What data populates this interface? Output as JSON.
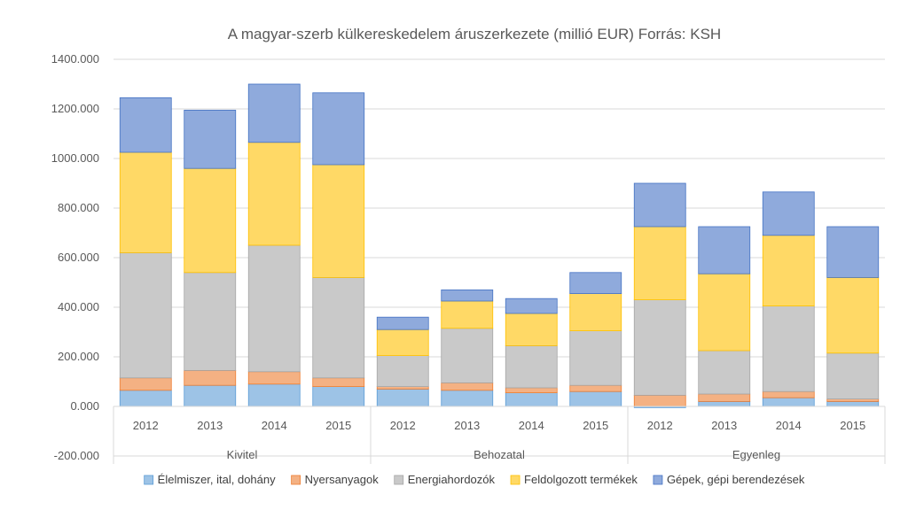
{
  "chart_data": {
    "type": "bar",
    "stacked": true,
    "title": "A magyar-szerb külkereskedelem áruszerkezete (millió EUR)  Forrás: KSH",
    "groups": [
      {
        "label": "Kivitel",
        "categories": [
          "2012",
          "2013",
          "2014",
          "2015"
        ]
      },
      {
        "label": "Behozatal",
        "categories": [
          "2012",
          "2013",
          "2014",
          "2015"
        ]
      },
      {
        "label": "Egyenleg",
        "categories": [
          "2012",
          "2013",
          "2014",
          "2015"
        ]
      }
    ],
    "series": [
      {
        "name": "Élelmiszer, ital, dohány",
        "color": "#9DC3E6",
        "border": "#5B9BD5",
        "values": [
          65,
          85,
          90,
          80,
          70,
          65,
          55,
          60,
          -5,
          20,
          35,
          20
        ]
      },
      {
        "name": "Nyersanyagok",
        "color": "#F4B183",
        "border": "#ED7D31",
        "values": [
          50,
          60,
          50,
          35,
          10,
          30,
          20,
          25,
          45,
          30,
          25,
          10
        ]
      },
      {
        "name": "Energiahordozók",
        "color": "#C9C9C9",
        "border": "#A5A5A5",
        "values": [
          505,
          395,
          510,
          405,
          125,
          220,
          170,
          220,
          385,
          175,
          345,
          185
        ]
      },
      {
        "name": "Feldolgozott termékek",
        "color": "#FFD966",
        "border": "#FFC000",
        "values": [
          405,
          420,
          415,
          455,
          105,
          110,
          130,
          150,
          295,
          310,
          285,
          305
        ]
      },
      {
        "name": "Gépek, gépi berendezések",
        "color": "#8FAADC",
        "border": "#4472C4",
        "values": [
          220,
          235,
          235,
          290,
          50,
          45,
          60,
          85,
          175,
          190,
          175,
          205
        ]
      }
    ],
    "ylim": [
      -200,
      1400
    ],
    "yticks": [
      -200,
      0,
      200,
      400,
      600,
      800,
      1000,
      1200,
      1400
    ],
    "ytick_labels": [
      "-200.000",
      "0.000",
      "200.000",
      "400.000",
      "600.000",
      "800.000",
      "1000.000",
      "1200.000",
      "1400.000"
    ],
    "grid": true,
    "legend_position": "bottom"
  }
}
